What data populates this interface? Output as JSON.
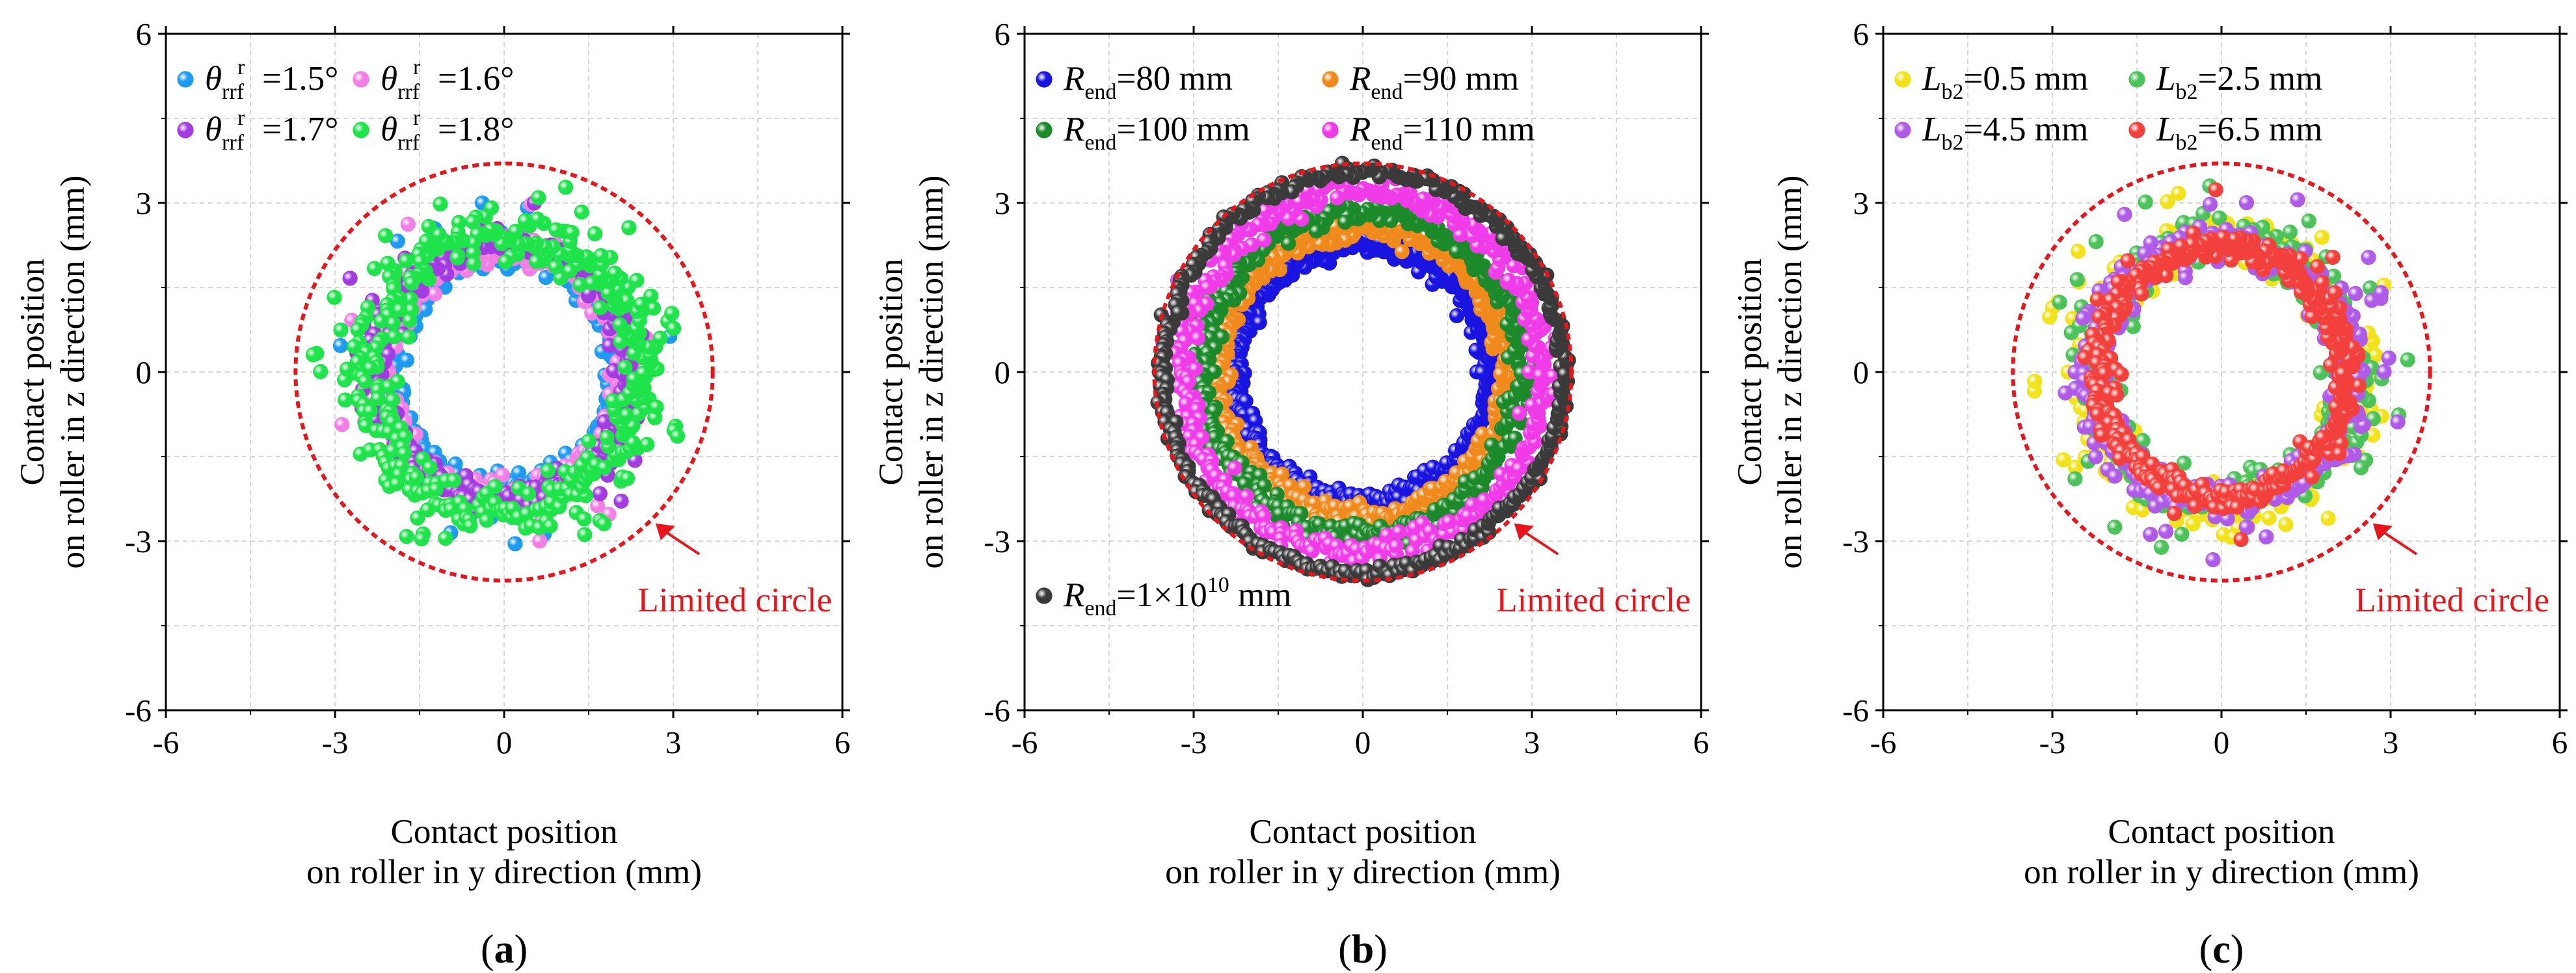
{
  "chart_data": [
    {
      "type": "scatter",
      "panel_label": "(a)",
      "panel_letter": "a",
      "xlabel_line1": "Contact position",
      "xlabel_line2": "on roller in y direction (mm)",
      "ylabel_line1": "Contact position",
      "ylabel_line2": "on roller in z direction (mm)",
      "xlim": [
        -6,
        6
      ],
      "ylim": [
        -6,
        6
      ],
      "xticks": [
        -6,
        -3,
        0,
        3,
        6
      ],
      "yticks": [
        -6,
        -3,
        0,
        3,
        6
      ],
      "grid": true,
      "legend_position": "top-left",
      "legend_columns": 2,
      "series": [
        {
          "name": "θrrfr=1.5°",
          "main": "θ",
          "sub": "rrf",
          "sup": "r",
          "tail": "=1.5°",
          "color": "#1e9bf0",
          "radius": 2.05,
          "scatter": 0.12,
          "outliers": 14
        },
        {
          "name": "θrrfr=1.6°",
          "main": "θ",
          "sub": "rrf",
          "sup": "r",
          "tail": "=1.6°",
          "color": "#f27fe6",
          "radius": 2.18,
          "scatter": 0.14,
          "outliers": 10
        },
        {
          "name": "θrrfr=1.7°",
          "main": "θ",
          "sub": "rrf",
          "sup": "r",
          "tail": "=1.7°",
          "color": "#a23be0",
          "radius": 2.28,
          "scatter": 0.14,
          "outliers": 8
        },
        {
          "name": "θrrfr=1.8°",
          "main": "θ",
          "sub": "rrf",
          "sup": "r",
          "tail": "=1.8°",
          "color": "#1ee34a",
          "radius": 2.45,
          "scatter": 0.22,
          "outliers": 30
        }
      ],
      "limited_circle": {
        "label": "Limited circle",
        "radius": 3.7,
        "color": "#e8161c"
      }
    },
    {
      "type": "scatter",
      "panel_label": "(b)",
      "panel_letter": "b",
      "xlabel_line1": "Contact position",
      "xlabel_line2": "on roller in y direction (mm)",
      "ylabel_line1": "Contact position",
      "ylabel_line2": "on roller in z direction (mm)",
      "xlim": [
        -6,
        6
      ],
      "ylim": [
        -6,
        6
      ],
      "xticks": [
        -6,
        -3,
        0,
        3,
        6
      ],
      "yticks": [
        -6,
        -3,
        0,
        3,
        6
      ],
      "grid": true,
      "legend_position": "top-left",
      "legend_columns": 2,
      "series": [
        {
          "name": "Rend=80 mm",
          "main": "R",
          "sub": "end",
          "tail": "=80 mm",
          "color": "#1a14e0",
          "radius": 2.25,
          "scatter": 0.1,
          "outliers": 0
        },
        {
          "name": "Rend=90 mm",
          "main": "R",
          "sub": "end",
          "tail": "=90 mm",
          "color": "#f08a1c",
          "radius": 2.55,
          "scatter": 0.1,
          "outliers": 0
        },
        {
          "name": "Rend=100 mm",
          "main": "R",
          "sub": "end",
          "tail": "=100 mm",
          "color": "#1c8a2a",
          "radius": 2.85,
          "scatter": 0.11,
          "outliers": 0
        },
        {
          "name": "Rend=110 mm",
          "main": "R",
          "sub": "end",
          "tail": "=110 mm",
          "color": "#f03ce8",
          "radius": 3.2,
          "scatter": 0.13,
          "outliers": 0
        },
        {
          "name": "Rend=1×1010 mm",
          "main": "R",
          "sub": "end",
          "tail": "=1×10",
          "sup2": "10",
          "tail2": " mm",
          "color": "#3a3a3a",
          "radius": 3.55,
          "scatter": 0.06,
          "outliers": 0
        }
      ],
      "limited_circle": {
        "label": "Limited circle",
        "radius": 3.7,
        "color": "#e8161c"
      }
    },
    {
      "type": "scatter",
      "panel_label": "(c)",
      "panel_letter": "c",
      "xlabel_line1": "Contact position",
      "xlabel_line2": "on roller in y direction (mm)",
      "ylabel_line1": "Contact position",
      "ylabel_line2": "on roller in z direction (mm)",
      "xlim": [
        -6,
        6
      ],
      "ylim": [
        -6,
        6
      ],
      "xticks": [
        -6,
        -3,
        0,
        3,
        6
      ],
      "yticks": [
        -6,
        -3,
        0,
        3,
        6
      ],
      "grid": true,
      "legend_position": "top-left",
      "legend_columns": 2,
      "series": [
        {
          "name": "Lb2=0.5 mm",
          "main": "L",
          "sub": "b2",
          "tail": "=0.5 mm",
          "color": "#f2e21a",
          "radius": 2.35,
          "scatter": 0.2,
          "outliers": 28
        },
        {
          "name": "Lb2=2.5 mm",
          "main": "L",
          "sub": "b2",
          "tail": "=2.5 mm",
          "color": "#4cc35a",
          "radius": 2.3,
          "scatter": 0.2,
          "outliers": 26
        },
        {
          "name": "Lb2=4.5 mm",
          "main": "L",
          "sub": "b2",
          "tail": "=4.5 mm",
          "color": "#b05ae8",
          "radius": 2.3,
          "scatter": 0.18,
          "outliers": 20
        },
        {
          "name": "Lb2=6.5 mm",
          "main": "L",
          "sub": "b2",
          "tail": "=6.5 mm",
          "color": "#f2403c",
          "radius": 2.22,
          "scatter": 0.14,
          "outliers": 4
        }
      ],
      "limited_circle": {
        "label": "Limited circle",
        "radius": 3.7,
        "color": "#e8161c"
      }
    }
  ]
}
